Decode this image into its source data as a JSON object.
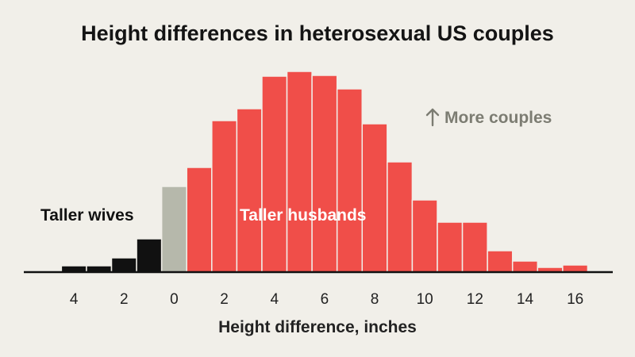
{
  "chart_data": {
    "type": "bar",
    "title": "Height differences in heterosexual US couples",
    "xlabel": "Height difference, inches",
    "ylabel": "",
    "x_ticks": [
      {
        "value": -4,
        "label": "4"
      },
      {
        "value": -2,
        "label": "2"
      },
      {
        "value": 0,
        "label": "0"
      },
      {
        "value": 2,
        "label": "2"
      },
      {
        "value": 4,
        "label": "4"
      },
      {
        "value": 6,
        "label": "6"
      },
      {
        "value": 8,
        "label": "8"
      },
      {
        "value": 10,
        "label": "10"
      },
      {
        "value": 12,
        "label": "12"
      },
      {
        "value": 14,
        "label": "14"
      },
      {
        "value": 16,
        "label": "16"
      }
    ],
    "x_range": [
      -6,
      17.5
    ],
    "ylim": [
      0,
      260
    ],
    "grid": false,
    "colors": {
      "taller_wives": "#111111",
      "equal": "#b6b8ab",
      "taller_husbands": "#f04e49",
      "background": "#f1efe9"
    },
    "series": [
      {
        "name": "Taller wives",
        "color": "#111111",
        "x": [
          -4,
          -3,
          -2,
          -1
        ],
        "values": [
          8,
          8,
          18,
          42
        ]
      },
      {
        "name": "",
        "color": "#b6b8ab",
        "x": [
          0
        ],
        "values": [
          108
        ]
      },
      {
        "name": "Taller husbands",
        "color": "#f04e49",
        "x": [
          1,
          2,
          3,
          4,
          5,
          6,
          7,
          8,
          9,
          10,
          11,
          12,
          13,
          14,
          15,
          16
        ],
        "values": [
          132,
          191,
          206,
          247,
          253,
          248,
          231,
          187,
          139,
          91,
          63,
          63,
          27,
          14,
          6,
          9
        ]
      }
    ],
    "annotations": {
      "taller_wives": "Taller wives",
      "taller_husbands": "Taller husbands",
      "more_couples": "More couples",
      "more_couples_icon": "arrow-up-icon"
    }
  }
}
